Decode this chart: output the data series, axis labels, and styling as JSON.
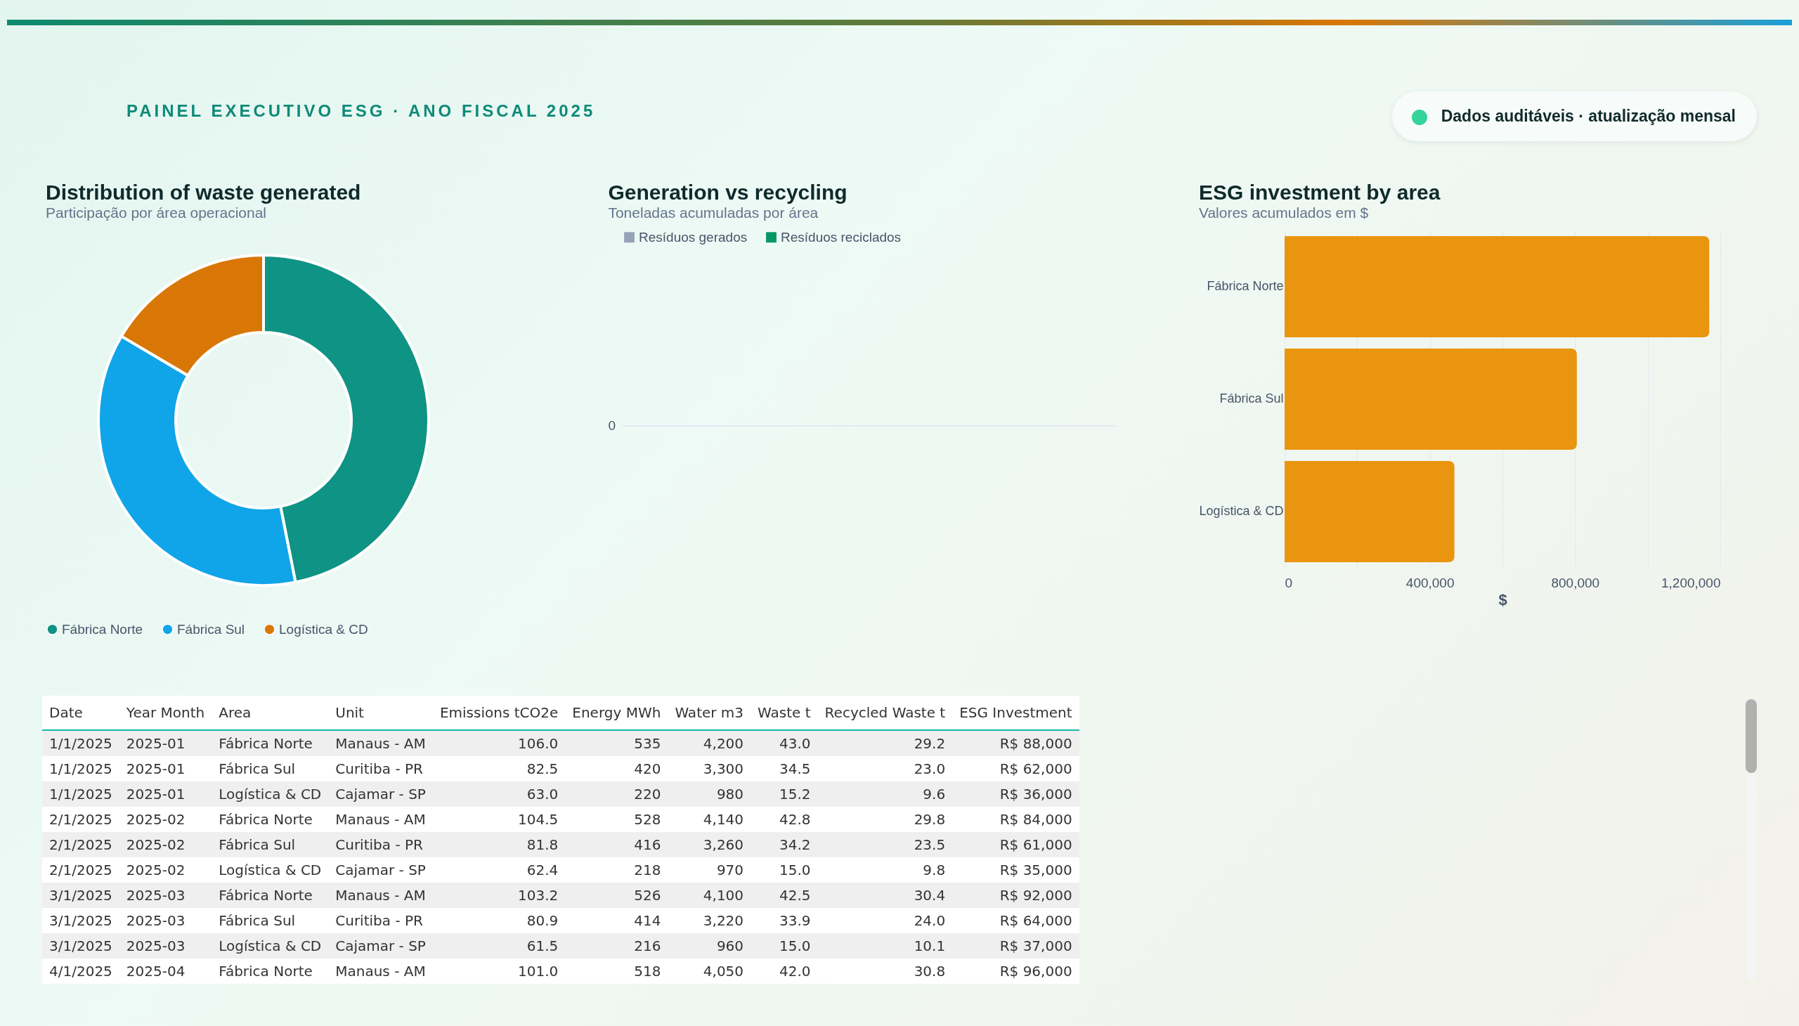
{
  "chart_data": [
    {
      "type": "other",
      "subtitle": "PAINEL EXECUTIVO ESG · ANO FISCAL 2025",
      "annotations": [
        "Dados auditáveis · atualização mensal"
      ]
    },
    {
      "type": "donut",
      "title": "Distribution of waste generated",
      "subtitle": "Participação por área operacional",
      "categories": [
        "Fábrica Norte",
        "Fábrica Sul",
        "Logística & CD"
      ],
      "values": [
        46.9,
        36.6,
        16.5
      ],
      "colors": [
        "#0e9384",
        "#10a5e9",
        "#d97706"
      ],
      "legend": "bottom left"
    },
    {
      "type": "other",
      "title": "Generation vs recycling",
      "subtitle": "Toneladas acumuladas por área",
      "series": [
        {
          "name": "Resíduos gerados",
          "color": "#94a3b8"
        },
        {
          "name": "Resíduos reciclados",
          "color": "#059669"
        }
      ],
      "annotations": [
        "0"
      ],
      "legend": "top left"
    },
    {
      "type": "bar",
      "title": "ESG investment by area",
      "subtitle": "Valores acumulados em $",
      "orientation": "horizontal",
      "categories": [
        "Fábrica Norte",
        "Fábrica Sul",
        "Logística & CD"
      ],
      "values": [
        1170000,
        805000,
        468000
      ],
      "color": "#e9950f",
      "xlabel": "$",
      "xlim": [
        0,
        1200000
      ],
      "xticks": [
        0,
        {
          "value": 200000,
          "label": null
        },
        {
          "value": 400000,
          "label": "400,000"
        },
        {
          "value": 600000,
          "label": null
        },
        {
          "value": 800000,
          "label": "800,000"
        },
        {
          "value": 1000000,
          "label": null
        },
        {
          "value": 1200000,
          "label": "1,200,000"
        }
      ],
      "grid": true
    },
    {
      "type": "other",
      "categories": [
        "Date",
        "Year Month",
        "Area",
        "Unit",
        "Emissions tCO2e",
        "Energy MWh",
        "Water m3",
        "Waste t",
        "Recycled Waste t",
        "ESG Investment"
      ],
      "cell_labels": [
        [
          "1/1/2025",
          "2025-01",
          "Fábrica Norte",
          "Manaus - AM",
          "106.0",
          "535",
          "4,200",
          "43.0",
          "29.2",
          "R$ 88,000"
        ],
        [
          "1/1/2025",
          "2025-01",
          "Fábrica Sul",
          "Curitiba - PR",
          "82.5",
          "420",
          "3,300",
          "34.5",
          "23.0",
          "R$ 62,000"
        ],
        [
          "1/1/2025",
          "2025-01",
          "Logística & CD",
          "Cajamar - SP",
          "63.0",
          "220",
          "980",
          "15.2",
          "9.6",
          "R$ 36,000"
        ],
        [
          "2/1/2025",
          "2025-02",
          "Fábrica Norte",
          "Manaus - AM",
          "104.5",
          "528",
          "4,140",
          "42.8",
          "29.8",
          "R$ 84,000"
        ],
        [
          "2/1/2025",
          "2025-02",
          "Fábrica Sul",
          "Curitiba - PR",
          "81.8",
          "416",
          "3,260",
          "34.2",
          "23.5",
          "R$ 61,000"
        ],
        [
          "2/1/2025",
          "2025-02",
          "Logística & CD",
          "Cajamar - SP",
          "62.4",
          "218",
          "970",
          "15.0",
          "9.8",
          "R$ 35,000"
        ],
        [
          "3/1/2025",
          "2025-03",
          "Fábrica Norte",
          "Manaus - AM",
          "103.2",
          "526",
          "4,100",
          "42.5",
          "30.4",
          "R$ 92,000"
        ],
        [
          "3/1/2025",
          "2025-03",
          "Fábrica Sul",
          "Curitiba - PR",
          "80.9",
          "414",
          "3,220",
          "33.9",
          "24.0",
          "R$ 64,000"
        ],
        [
          "3/1/2025",
          "2025-03",
          "Logística & CD",
          "Cajamar - SP",
          "61.5",
          "216",
          "960",
          "15.0",
          "10.1",
          "R$ 37,000"
        ],
        [
          "4/1/2025",
          "2025-04",
          "Fábrica Norte",
          "Manaus - AM",
          "101.0",
          "518",
          "4,050",
          "42.0",
          "30.8",
          "R$ 96,000"
        ]
      ]
    }
  ]
}
